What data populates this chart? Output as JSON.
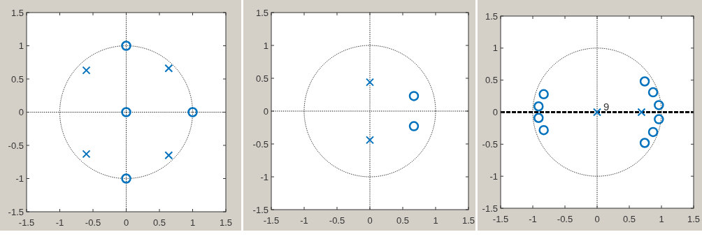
{
  "chart_data": [
    {
      "type": "scatter",
      "xlim": [
        -1.5,
        1.5
      ],
      "ylim": [
        -1.5,
        1.5
      ],
      "xticks": [
        -1.5,
        -1,
        -0.5,
        0,
        0.5,
        1,
        1.5
      ],
      "yticks": [
        -1.5,
        -1,
        -0.5,
        0,
        0.5,
        1,
        1.5
      ],
      "grid": false,
      "ref_lines": [
        {
          "axis": "x",
          "value": 0,
          "color": "#000000",
          "line_style": "dotted"
        },
        {
          "axis": "y",
          "value": 0,
          "color": "#000000",
          "line_style": "dotted"
        }
      ],
      "series": [
        {
          "color": "#0072bd",
          "marker": "circle",
          "x": [
            0,
            0,
            1,
            0
          ],
          "values": [
            1,
            0,
            0,
            -1
          ]
        },
        {
          "color": "#0072bd",
          "marker": "cross",
          "x": [
            -0.6,
            0.64,
            -0.6,
            0.64
          ],
          "values": [
            0.63,
            0.66,
            -0.63,
            -0.65
          ]
        }
      ]
    },
    {
      "type": "scatter",
      "xlim": [
        -1.5,
        1.5
      ],
      "ylim": [
        -1.5,
        1.5
      ],
      "xticks": [
        -1.5,
        -1,
        -0.5,
        0,
        0.5,
        1,
        1.5
      ],
      "yticks": [
        -1.5,
        -1,
        -0.5,
        0,
        0.5,
        1,
        1.5
      ],
      "grid": false,
      "ref_lines": [
        {
          "axis": "x",
          "value": 0,
          "color": "#000000",
          "line_style": "dotted"
        },
        {
          "axis": "y",
          "value": 0,
          "color": "#000000",
          "line_style": "dotted"
        }
      ],
      "series": [
        {
          "color": "#0072bd",
          "marker": "circle",
          "x": [
            0.67,
            0.67
          ],
          "values": [
            0.23,
            -0.23
          ]
        },
        {
          "color": "#0072bd",
          "marker": "cross",
          "x": [
            0,
            0
          ],
          "values": [
            0.44,
            -0.44
          ]
        }
      ]
    },
    {
      "type": "scatter",
      "xlim": [
        -1.5,
        1.5
      ],
      "ylim": [
        -1.5,
        1.5
      ],
      "xticks": [
        -1.5,
        -1,
        -0.5,
        0,
        0.5,
        1,
        1.5
      ],
      "yticks": [
        -1.5,
        -1,
        -0.5,
        0,
        0.5,
        1,
        1.5
      ],
      "grid": false,
      "ref_lines": [
        {
          "axis": "x",
          "value": 0,
          "color": "#000000",
          "line_style": "dotted"
        },
        {
          "axis": "y",
          "value": 0,
          "color": "#000000",
          "line_style": "dashed"
        }
      ],
      "annotations": [
        {
          "text": "9",
          "x": 0,
          "y": 0
        }
      ],
      "series": [
        {
          "color": "#0072bd",
          "marker": "circle",
          "x": [
            -0.83,
            -0.91,
            -0.91,
            -0.83,
            0.74,
            0.87,
            0.96,
            0.96,
            0.87,
            0.74
          ],
          "values": [
            0.28,
            0.09,
            -0.09,
            -0.28,
            0.48,
            0.31,
            0.11,
            -0.11,
            -0.31,
            -0.48
          ]
        },
        {
          "color": "#0072bd",
          "marker": "cross",
          "x": [
            0,
            0.69
          ],
          "values": [
            0,
            0
          ]
        }
      ]
    }
  ]
}
